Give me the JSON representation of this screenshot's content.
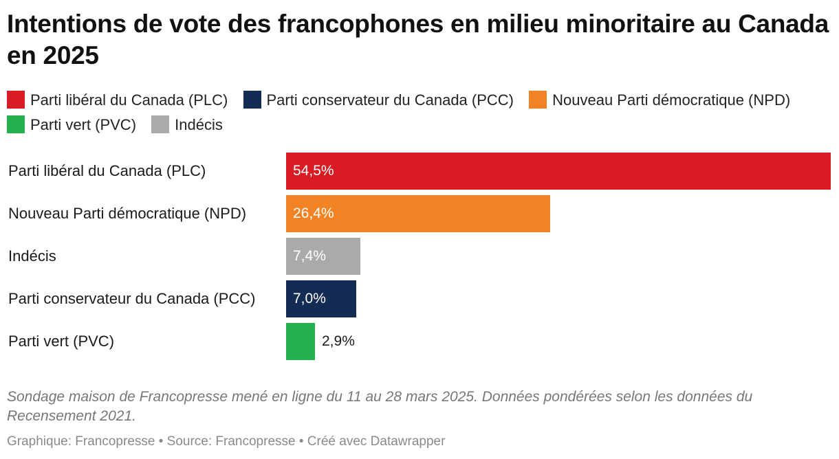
{
  "header": {
    "title": "Intentions de vote des francophones en milieu minoritaire au Canada en 2025"
  },
  "legend": [
    {
      "label": "Parti libéral du Canada (PLC)",
      "color": "#d91c24"
    },
    {
      "label": "Parti conservateur du Canada (PCC)",
      "color": "#132c53"
    },
    {
      "label": "Nouveau Parti démocratique (NPD)",
      "color": "#f28324"
    },
    {
      "label": "Parti vert (PVC)",
      "color": "#22b14c"
    },
    {
      "label": "Indécis",
      "color": "#aaaaaa"
    }
  ],
  "chart_data": {
    "type": "bar",
    "orientation": "horizontal",
    "title": "Intentions de vote des francophones en milieu minoritaire au Canada en 2025",
    "categories": [
      "Parti libéral du Canada (PLC)",
      "Nouveau Parti démocratique (NPD)",
      "Indécis",
      "Parti conservateur du Canada (PCC)",
      "Parti vert (PVC)"
    ],
    "values": [
      54.5,
      26.4,
      7.4,
      7.0,
      2.9
    ],
    "value_labels": [
      "54,5%",
      "26,4%",
      "7,4%",
      "7,0%",
      "2,9%"
    ],
    "colors": [
      "#d91c24",
      "#f28324",
      "#aaaaaa",
      "#132c53",
      "#22b14c"
    ],
    "xlim": [
      0,
      54.5
    ],
    "grid": false,
    "legend_position": "top"
  },
  "footer": {
    "note": "Sondage maison de Francopresse mené en ligne du 11 au 28 mars 2025. Données pondérées selon les données du Recensement 2021.",
    "credit": "Graphique: Francopresse • Source: Francopresse • Créé avec Datawrapper"
  }
}
